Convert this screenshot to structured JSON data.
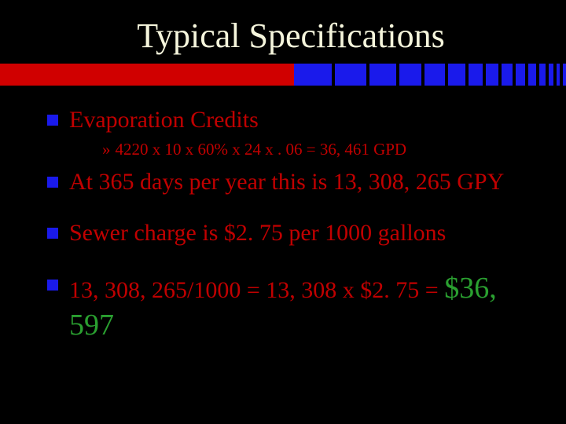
{
  "title": "Typical Specifications",
  "colors": {
    "background": "#000000",
    "title_text": "#f5f5dc",
    "body_text": "#c00000",
    "bullet_square": "#1a1aeb",
    "accent_red": "#d00000",
    "accent_blue": "#1a1aeb",
    "highlight_green": "#2aa030"
  },
  "typography": {
    "title_fontsize": 44,
    "body_fontsize": 30,
    "sub_fontsize": 21,
    "highlight_fontsize": 38,
    "font_family": "Times New Roman"
  },
  "accent_bar": {
    "red_width_pct": 52,
    "blue_block_widths": [
      48,
      40,
      34,
      28,
      26,
      22,
      18,
      16,
      14,
      12,
      10,
      8,
      6,
      4,
      4
    ]
  },
  "bullets": {
    "b1": "Evaporation Credits",
    "b1_sub_prefix": "»",
    "b1_sub": "4220 x 10 x 60% x 24 x . 06 =   36, 461 GPD",
    "b2": "At 365 days per year this is 13, 308, 265 GPY",
    "b3": "Sewer charge is $2. 75 per 1000 gallons",
    "b4_pre": "13, 308, 265/1000 = 13, 308 x $2. 75 = ",
    "b4_hl": "$36, 597"
  }
}
